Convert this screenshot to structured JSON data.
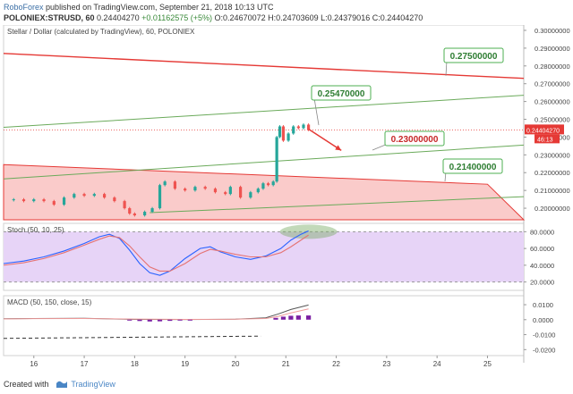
{
  "header": {
    "brand": "RoboForex",
    "published": "published on TradingView.com, September 21, 2018 10:13 UTC",
    "symbol": "POLONIEX:STRUSD, 60",
    "last": "0.24404270",
    "change": "+0.01162575 (+5%)",
    "ohlc": "O:0.24670072 H:0.24703609 L:0.24379016 C:0.24404270"
  },
  "footer": {
    "created_with": "Created with",
    "tradingview": "TradingView"
  },
  "colors": {
    "up": "#26a69a",
    "down": "#ef5350",
    "resistance": "#e53935",
    "channel": "#6aaa5a",
    "callout_border": "#4caf50",
    "stoch_bg": "#e7d4f7"
  },
  "chart_data": [
    {
      "type": "candlestick",
      "title": "Stellar / Dollar (calculated by TradingView), 60, POLONIEX",
      "x_ticks": [
        "16",
        "17",
        "18",
        "19",
        "20",
        "21",
        "22",
        "23",
        "24",
        "25"
      ],
      "y_ticks": [
        "0.30000000",
        "0.29000000",
        "0.28000000",
        "0.27000000",
        "0.26000000",
        "0.25000000",
        "0.24000000",
        "0.23000000",
        "0.22000000",
        "0.21000000",
        "0.20000000"
      ],
      "ylim": [
        0.1935,
        0.303
      ],
      "xlim": [
        15.4,
        25.72
      ],
      "last_price": "0.24404270",
      "countdown": "46:13",
      "price_closes": [
        [
          15.4,
          0.2045
        ],
        [
          15.6,
          0.205
        ],
        [
          15.8,
          0.204
        ],
        [
          16.0,
          0.205
        ],
        [
          16.2,
          0.204
        ],
        [
          16.4,
          0.202
        ],
        [
          16.6,
          0.206
        ],
        [
          16.8,
          0.208
        ],
        [
          17.0,
          0.207
        ],
        [
          17.2,
          0.208
        ],
        [
          17.4,
          0.206
        ],
        [
          17.6,
          0.204
        ],
        [
          17.8,
          0.2
        ],
        [
          17.9,
          0.197
        ],
        [
          18.0,
          0.196
        ],
        [
          18.2,
          0.198
        ],
        [
          18.35,
          0.2
        ],
        [
          18.5,
          0.213
        ],
        [
          18.6,
          0.215
        ],
        [
          18.8,
          0.211
        ],
        [
          19.0,
          0.21
        ],
        [
          19.2,
          0.212
        ],
        [
          19.4,
          0.211
        ],
        [
          19.6,
          0.209
        ],
        [
          19.8,
          0.208
        ],
        [
          19.9,
          0.212
        ],
        [
          20.1,
          0.206
        ],
        [
          20.3,
          0.209
        ],
        [
          20.45,
          0.211
        ],
        [
          20.55,
          0.214
        ],
        [
          20.65,
          0.213
        ],
        [
          20.75,
          0.215
        ],
        [
          20.82,
          0.24
        ],
        [
          20.88,
          0.246
        ],
        [
          20.95,
          0.238
        ],
        [
          21.05,
          0.242
        ],
        [
          21.15,
          0.246
        ],
        [
          21.25,
          0.245
        ],
        [
          21.35,
          0.247
        ],
        [
          21.45,
          0.244
        ]
      ],
      "callouts": [
        {
          "label": "0.27500000",
          "value": 0.275
        },
        {
          "label": "0.25470000",
          "value": 0.2547
        },
        {
          "label": "0.23000000",
          "value": 0.23
        },
        {
          "label": "0.21400000",
          "value": 0.214
        }
      ],
      "lines": [
        {
          "name": "resistance",
          "from": [
            15.4,
            0.287
          ],
          "to": [
            25.72,
            0.273
          ]
        },
        {
          "name": "channel-top",
          "from": [
            15.4,
            0.2455
          ],
          "to": [
            25.72,
            0.2635
          ]
        },
        {
          "name": "channel-middle",
          "from": [
            15.4,
            0.2165
          ],
          "to": [
            25.72,
            0.2355
          ]
        },
        {
          "name": "channel-bottom",
          "from": [
            18.3,
            0.1975
          ],
          "to": [
            25.72,
            0.2065
          ]
        }
      ],
      "triangle_zone": {
        "points": [
          [
            15.4,
            0.2245
          ],
          [
            25.0,
            0.2135
          ],
          [
            25.72,
            0.1935
          ],
          [
            15.4,
            0.1935
          ]
        ]
      },
      "forecast_arrow": {
        "from": [
          21.45,
          0.2445
        ],
        "to": [
          22.1,
          0.2325
        ]
      }
    },
    {
      "type": "line",
      "title": "Stoch (50, 10, 25)",
      "ylim": [
        10,
        90
      ],
      "y_ticks": [
        "80.0000",
        "60.0000",
        "40.0000",
        "20.0000"
      ],
      "bands": [
        20,
        80
      ],
      "series": [
        {
          "name": "K",
          "color": "#2962ff",
          "x": [
            15.4,
            15.8,
            16.2,
            16.6,
            17.0,
            17.3,
            17.5,
            17.7,
            17.9,
            18.1,
            18.3,
            18.5,
            18.7,
            19.0,
            19.3,
            19.5,
            19.7,
            20.0,
            20.3,
            20.6,
            20.9,
            21.1,
            21.3,
            21.45
          ],
          "values": [
            42,
            45,
            50,
            57,
            66,
            74,
            77,
            72,
            58,
            42,
            31,
            28,
            33,
            48,
            60,
            62,
            56,
            50,
            47,
            51,
            60,
            70,
            77,
            81
          ]
        },
        {
          "name": "D",
          "color": "#e57373",
          "x": [
            15.4,
            15.8,
            16.2,
            16.6,
            17.0,
            17.3,
            17.5,
            17.7,
            17.9,
            18.1,
            18.3,
            18.5,
            18.7,
            19.0,
            19.3,
            19.5,
            19.7,
            20.0,
            20.3,
            20.6,
            20.9,
            21.1,
            21.3,
            21.45
          ],
          "values": [
            40,
            43,
            48,
            55,
            64,
            71,
            75,
            73,
            63,
            50,
            38,
            33,
            33,
            42,
            54,
            59,
            57,
            53,
            50,
            50,
            55,
            62,
            70,
            76
          ]
        }
      ]
    },
    {
      "type": "line",
      "title": "MACD (50, 150, close, 15)",
      "ylim": [
        -0.024,
        0.016
      ],
      "y_ticks": [
        "0.0100",
        "0.0000",
        "-0.0100",
        "-0.0200"
      ],
      "series": [
        {
          "name": "MACD",
          "color": "#555555",
          "x": [
            15.4,
            16.0,
            17.0,
            18.0,
            19.0,
            20.0,
            20.6,
            20.85,
            21.1,
            21.45
          ],
          "values": [
            0.0006,
            0.0008,
            0.0009,
            0.0002,
            0.0001,
            0.0003,
            0.0012,
            0.0038,
            0.0068,
            0.0098
          ]
        },
        {
          "name": "Signal",
          "color": "#ef9a9a",
          "x": [
            15.4,
            16.0,
            17.0,
            18.0,
            19.0,
            20.0,
            20.6,
            20.85,
            21.1,
            21.45
          ],
          "values": [
            0.0005,
            0.0007,
            0.0008,
            0.0004,
            0.0002,
            0.0003,
            0.0008,
            0.0022,
            0.0045,
            0.0072
          ]
        },
        {
          "name": "Histogram",
          "color": "#7b1fa2",
          "x": [
            17.9,
            18.1,
            18.3,
            18.5,
            18.7,
            18.9,
            19.1,
            20.8,
            20.95,
            21.1,
            21.25,
            21.45
          ],
          "values": [
            -0.0004,
            -0.0009,
            -0.0012,
            -0.0011,
            -0.0008,
            -0.0006,
            -0.0003,
            0.0012,
            0.002,
            0.0026,
            0.0028,
            0.0028
          ]
        }
      ],
      "dashed_level": {
        "from": [
          15.4,
          -0.0125
        ],
        "to": [
          20.5,
          -0.011
        ]
      }
    }
  ]
}
